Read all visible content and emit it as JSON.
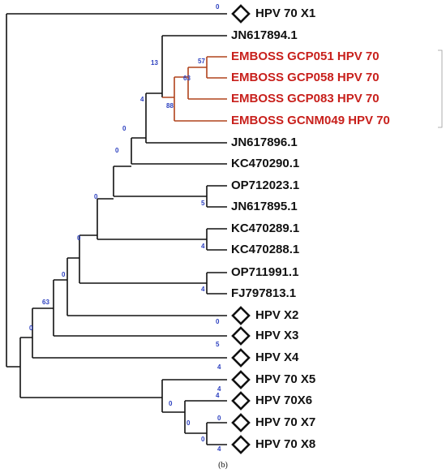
{
  "leaves": [
    "HPV 70 X1",
    "JN617894.1",
    "EMBOSS GCP051 HPV 70",
    "EMBOSS GCP058 HPV 70",
    "EMBOSS GCP083 HPV 70",
    "EMBOSS GCNM049 HPV 70",
    "JN617896.1",
    "KC470290.1",
    "OP712023.1",
    "JN617895.1",
    "KC470289.1",
    "KC470288.1",
    "OP711991.1",
    "FJ797813.1",
    "HPV X2",
    "HPV X3",
    "HPV X4",
    "HPV 70 X5",
    "HPV 70X6",
    "HPV 70 X7",
    "HPV 70 X8"
  ],
  "bootstrap": [
    0,
    13,
    57,
    63,
    88,
    4,
    0,
    0,
    5,
    0,
    4,
    0,
    4,
    0,
    63,
    0,
    0,
    5,
    4,
    4,
    0,
    4,
    0,
    0,
    0,
    4
  ],
  "caption": "(b)"
}
